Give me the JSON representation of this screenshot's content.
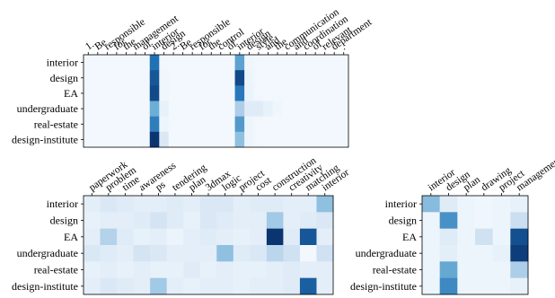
{
  "chart_data": [
    {
      "type": "heatmap",
      "columns": [
        "1.",
        "Be",
        "responsible",
        "for",
        "the",
        "management",
        "of",
        "interior",
        "design",
        "2.",
        "Be",
        "responsible",
        "for",
        "the",
        "control",
        "of",
        "interior",
        "design",
        "style",
        "and",
        "the",
        "communication",
        "and",
        "coordination",
        "of",
        "relevant",
        "department",
        "."
      ],
      "rows": [
        "interior",
        "design",
        "EA",
        "undergraduate",
        "real-estate",
        "design-institute"
      ],
      "values": [
        [
          0.02,
          0.02,
          0.02,
          0.02,
          0.02,
          0.02,
          0.03,
          0.75,
          0.03,
          0.02,
          0.02,
          0.02,
          0.02,
          0.02,
          0.02,
          0.02,
          0.55,
          0.04,
          0.03,
          0.02,
          0.02,
          0.02,
          0.02,
          0.02,
          0.02,
          0.02,
          0.02,
          0.02
        ],
        [
          0.02,
          0.02,
          0.02,
          0.02,
          0.02,
          0.02,
          0.03,
          0.85,
          0.04,
          0.02,
          0.02,
          0.02,
          0.02,
          0.02,
          0.02,
          0.02,
          0.9,
          0.05,
          0.03,
          0.02,
          0.02,
          0.02,
          0.02,
          0.02,
          0.02,
          0.02,
          0.02,
          0.02
        ],
        [
          0.02,
          0.02,
          0.02,
          0.02,
          0.02,
          0.02,
          0.03,
          0.9,
          0.04,
          0.02,
          0.02,
          0.02,
          0.02,
          0.02,
          0.02,
          0.02,
          0.72,
          0.06,
          0.03,
          0.02,
          0.02,
          0.02,
          0.02,
          0.02,
          0.02,
          0.02,
          0.02,
          0.02
        ],
        [
          0.02,
          0.02,
          0.02,
          0.02,
          0.02,
          0.02,
          0.03,
          0.5,
          0.08,
          0.02,
          0.02,
          0.02,
          0.02,
          0.02,
          0.02,
          0.02,
          0.32,
          0.12,
          0.12,
          0.08,
          0.04,
          0.02,
          0.02,
          0.02,
          0.02,
          0.02,
          0.02,
          0.02
        ],
        [
          0.02,
          0.02,
          0.02,
          0.02,
          0.02,
          0.02,
          0.03,
          0.7,
          0.05,
          0.02,
          0.02,
          0.02,
          0.02,
          0.02,
          0.02,
          0.02,
          0.58,
          0.05,
          0.03,
          0.02,
          0.02,
          0.02,
          0.02,
          0.02,
          0.02,
          0.02,
          0.02,
          0.02
        ],
        [
          0.02,
          0.02,
          0.02,
          0.02,
          0.02,
          0.02,
          0.03,
          0.98,
          0.15,
          0.02,
          0.02,
          0.02,
          0.02,
          0.02,
          0.02,
          0.02,
          0.4,
          0.05,
          0.03,
          0.02,
          0.02,
          0.02,
          0.02,
          0.02,
          0.02,
          0.02,
          0.02,
          0.02
        ]
      ],
      "colormap": [
        "#f7fbff",
        "#c6dbef",
        "#6baed6",
        "#2171b5",
        "#08306b"
      ]
    },
    {
      "type": "heatmap",
      "columns": [
        "paperwork",
        "problem",
        "time",
        "awareness",
        "ps",
        "tendering",
        "plan",
        "3dmax",
        "logic",
        "project",
        "cost",
        "construction",
        "creativity",
        "matching",
        "interior"
      ],
      "rows": [
        "interior",
        "design",
        "EA",
        "undergraduate",
        "real-estate",
        "design-institute"
      ],
      "values": [
        [
          0.1,
          0.15,
          0.12,
          0.1,
          0.1,
          0.12,
          0.1,
          0.15,
          0.15,
          0.1,
          0.12,
          0.12,
          0.1,
          0.1,
          0.4
        ],
        [
          0.08,
          0.1,
          0.1,
          0.12,
          0.18,
          0.12,
          0.08,
          0.15,
          0.12,
          0.1,
          0.1,
          0.35,
          0.1,
          0.12,
          0.15
        ],
        [
          0.1,
          0.3,
          0.12,
          0.08,
          0.1,
          0.06,
          0.1,
          0.12,
          0.1,
          0.08,
          0.1,
          0.98,
          0.12,
          0.85,
          0.1
        ],
        [
          0.15,
          0.12,
          0.1,
          0.18,
          0.15,
          0.1,
          0.1,
          0.1,
          0.4,
          0.12,
          0.15,
          0.28,
          0.2,
          0.02,
          0.2
        ],
        [
          0.08,
          0.1,
          0.08,
          0.1,
          0.08,
          0.08,
          0.12,
          0.08,
          0.1,
          0.08,
          0.08,
          0.1,
          0.12,
          0.1,
          0.1
        ],
        [
          0.1,
          0.15,
          0.12,
          0.1,
          0.35,
          0.1,
          0.08,
          0.1,
          0.1,
          0.08,
          0.1,
          0.1,
          0.12,
          0.82,
          0.1
        ]
      ],
      "colormap": [
        "#f7fbff",
        "#c6dbef",
        "#6baed6",
        "#2171b5",
        "#08306b"
      ]
    },
    {
      "type": "heatmap",
      "columns": [
        "interior",
        "design",
        "plan",
        "drawing",
        "project",
        "management"
      ],
      "rows": [
        "interior",
        "design",
        "EA",
        "undergraduate",
        "real-estate",
        "design-institute"
      ],
      "values": [
        [
          0.42,
          0.12,
          0.05,
          0.04,
          0.05,
          0.08
        ],
        [
          0.05,
          0.62,
          0.05,
          0.04,
          0.05,
          0.22
        ],
        [
          0.05,
          0.12,
          0.05,
          0.2,
          0.05,
          0.88
        ],
        [
          0.05,
          0.1,
          0.05,
          0.05,
          0.08,
          0.95
        ],
        [
          0.05,
          0.52,
          0.05,
          0.05,
          0.05,
          0.32
        ],
        [
          0.05,
          0.65,
          0.05,
          0.05,
          0.05,
          0.08
        ]
      ],
      "colormap": [
        "#f7fbff",
        "#c6dbef",
        "#6baed6",
        "#2171b5",
        "#08306b"
      ]
    }
  ]
}
